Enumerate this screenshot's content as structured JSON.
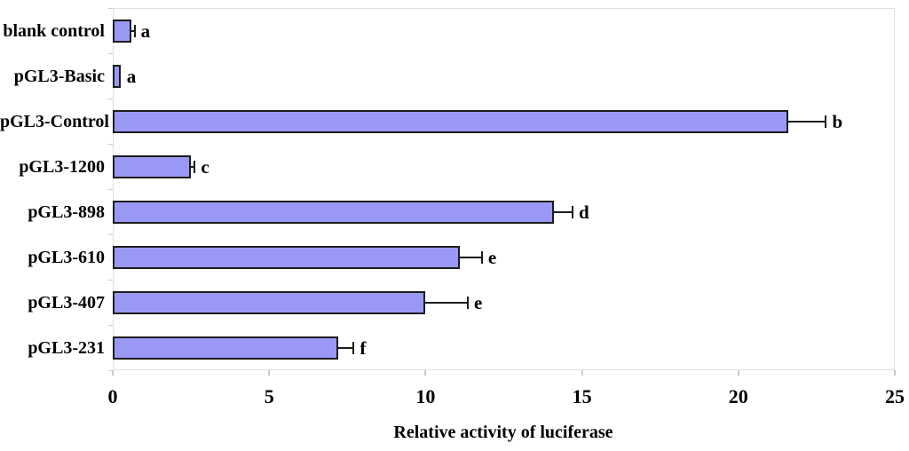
{
  "colors": {
    "bar_fill": "#9999f5",
    "bar_border": "#1c1c1c",
    "error_bar": "#1c1c1c",
    "axis_line": "#e0e0e0",
    "tick_mark": "#c9c9c9",
    "text": "#000000",
    "background": "#ffffff"
  },
  "chart_data": {
    "type": "bar",
    "orientation": "horizontal",
    "title": "",
    "xlabel": "Relative activity of luciferase",
    "ylabel": "",
    "xlim": [
      0,
      25
    ],
    "x_ticks": [
      "0",
      "5",
      "10",
      "15",
      "20",
      "25"
    ],
    "x_tick_values": [
      0,
      5,
      10,
      15,
      20,
      25
    ],
    "grid": false,
    "legend": "none",
    "categories": [
      "blank control",
      "pGL3-Basic",
      "pGL3-Control",
      "pGL3-1200",
      "pGL3-898",
      "pGL3-610",
      "pGL3-407",
      "pGL3-231"
    ],
    "values": [
      0.6,
      0.25,
      21.6,
      2.5,
      14.1,
      11.1,
      10.0,
      7.2
    ],
    "errors": [
      0.1,
      0,
      1.2,
      0.12,
      0.6,
      0.7,
      1.35,
      0.5
    ],
    "sig_letters": [
      "a",
      "a",
      "b",
      "c",
      "d",
      "e",
      "e",
      "f"
    ]
  }
}
